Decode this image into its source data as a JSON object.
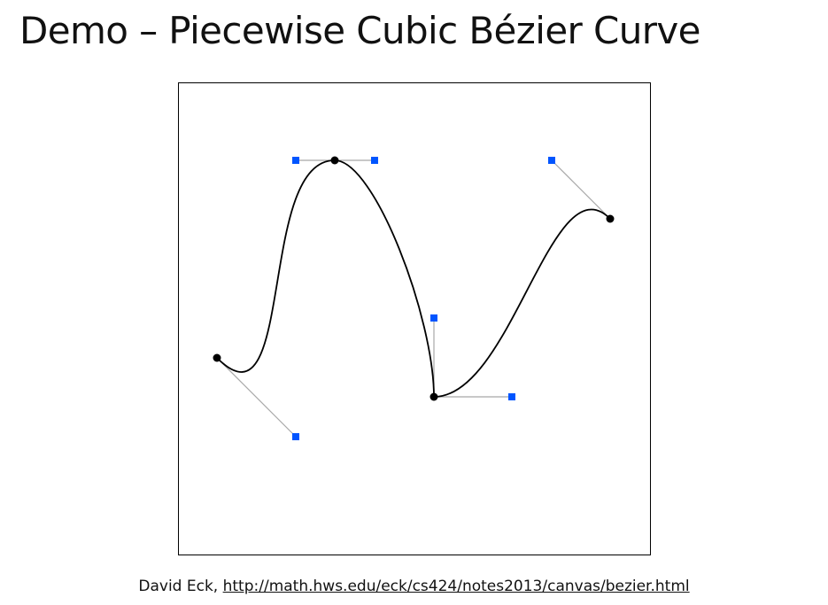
{
  "slide": {
    "title": "Demo – Piecewise Cubic Bézier Curve"
  },
  "caption": {
    "author": "David Eck, ",
    "link_text": "http://math.hws.edu/eck/cs424/notes2013/canvas/bezier.html"
  },
  "colors": {
    "curve": "#000000",
    "anchor": "#000000",
    "control": "#0055ff",
    "handle": "#a8a8a8"
  }
}
